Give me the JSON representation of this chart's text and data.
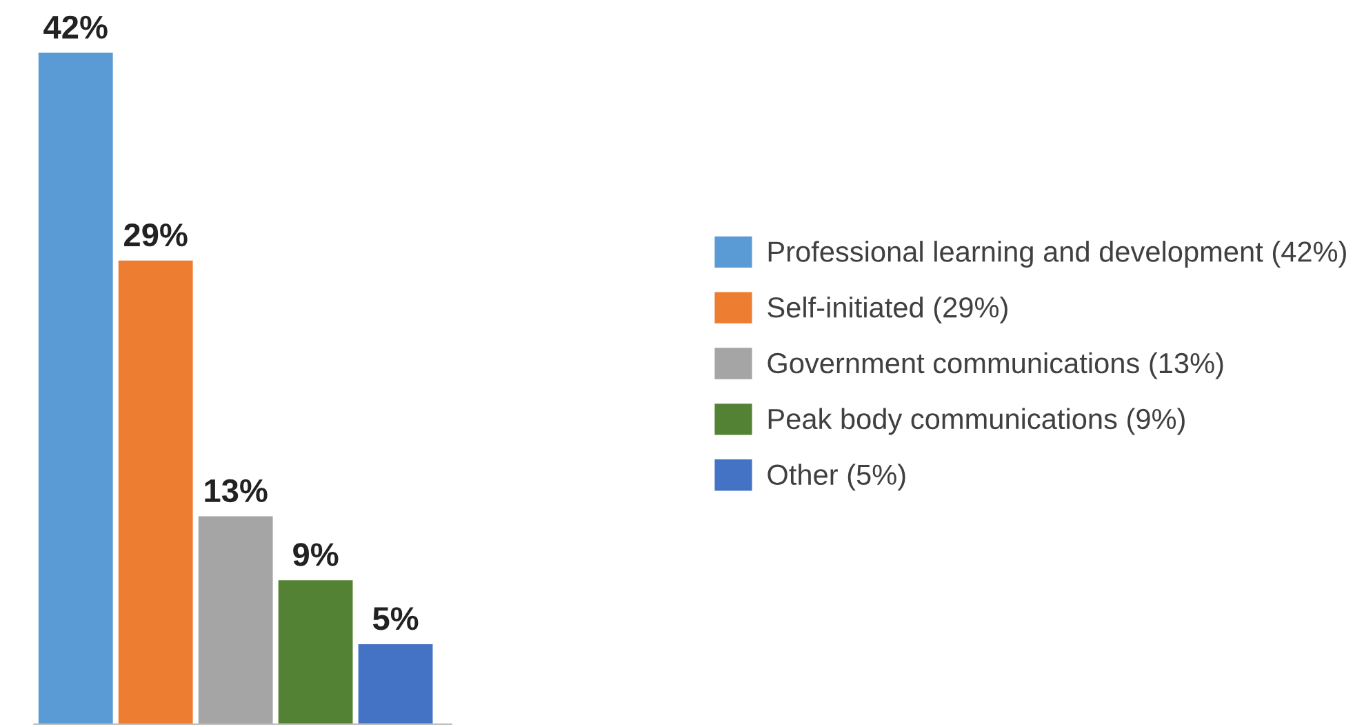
{
  "chart_data": {
    "type": "bar",
    "stacked": true,
    "categories": [
      null,
      null,
      null,
      null,
      null
    ],
    "series": [
      {
        "name": "Professional learning and development (42%)",
        "color": "#5b9bd5",
        "values": [
          42,
          null,
          null,
          null,
          null
        ],
        "value_labels": [
          "42%",
          null,
          null,
          null,
          null
        ]
      },
      {
        "name": "Self-initiated (29%)",
        "color": "#ed7d31",
        "values": [
          null,
          29,
          null,
          null,
          null
        ],
        "value_labels": [
          null,
          "29%",
          null,
          null,
          null
        ]
      },
      {
        "name": "Government communications (13%)",
        "color": "#a5a5a5",
        "values": [
          null,
          null,
          13,
          null,
          null
        ],
        "value_labels": [
          null,
          null,
          "13%",
          null,
          null
        ]
      },
      {
        "name": "Peak body communications (9%)",
        "color": "#548235",
        "values": [
          null,
          null,
          null,
          9,
          null
        ],
        "value_labels": [
          null,
          null,
          null,
          "9%",
          null
        ]
      },
      {
        "name": "Other (5%)",
        "color": "#4472c4",
        "values": [
          null,
          null,
          null,
          null,
          5
        ],
        "value_labels": [
          null,
          null,
          null,
          null,
          "5%"
        ]
      }
    ],
    "relative": false,
    "legend": "right",
    "tick_labels": false
  }
}
